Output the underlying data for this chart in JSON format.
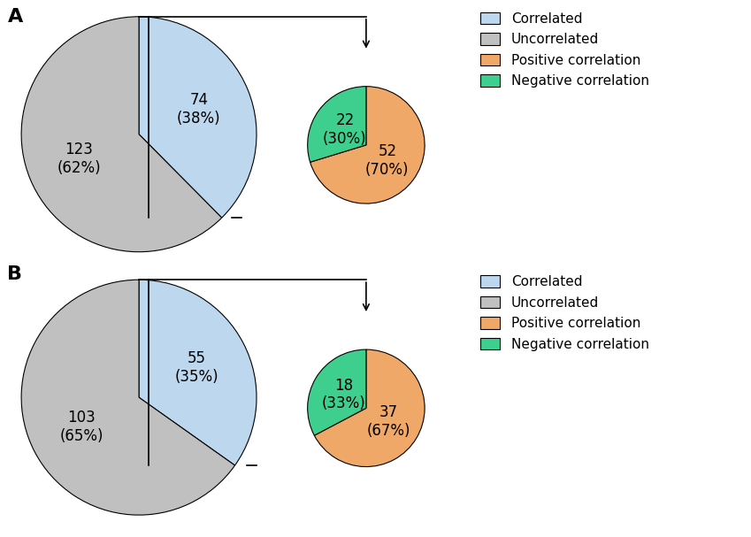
{
  "panel_A": {
    "main_pie": {
      "values": [
        74,
        123
      ],
      "labels": [
        "74\n(38%)",
        "123\n(62%)"
      ],
      "colors": [
        "#bdd7ee",
        "#c0c0c0"
      ],
      "startangle": 90,
      "pct_corr": 0.38
    },
    "sub_pie": {
      "values": [
        52,
        22
      ],
      "labels": [
        "52\n(70%)",
        "22\n(30%)"
      ],
      "colors": [
        "#f0a868",
        "#3ecf8e"
      ],
      "startangle": 90
    }
  },
  "panel_B": {
    "main_pie": {
      "values": [
        55,
        103
      ],
      "labels": [
        "55\n(35%)",
        "103\n(65%)"
      ],
      "colors": [
        "#bdd7ee",
        "#c0c0c0"
      ],
      "startangle": 90,
      "pct_corr": 0.35
    },
    "sub_pie": {
      "values": [
        37,
        18
      ],
      "labels": [
        "37\n(67%)",
        "18\n(33%)"
      ],
      "colors": [
        "#f0a868",
        "#3ecf8e"
      ],
      "startangle": 90
    }
  },
  "legend_labels": [
    "Correlated",
    "Uncorrelated",
    "Positive correlation",
    "Negative correlation"
  ],
  "legend_colors": [
    "#bdd7ee",
    "#c0c0c0",
    "#f0a868",
    "#3ecf8e"
  ],
  "label_fontsize": 12,
  "panel_label_fontsize": 16
}
